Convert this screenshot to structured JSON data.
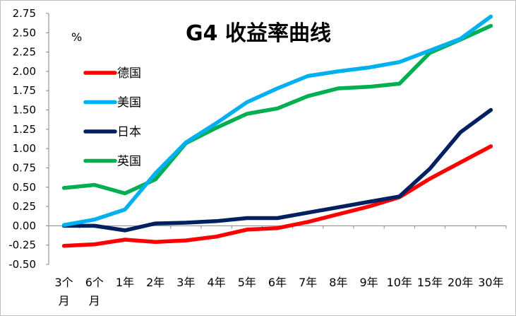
{
  "chart_data": {
    "type": "line",
    "title": "G4 收益率曲线",
    "unit": "%",
    "ylim": [
      -0.5,
      2.75
    ],
    "yticks": [
      "2.75",
      "2.50",
      "2.25",
      "2.00",
      "1.75",
      "1.50",
      "1.25",
      "1.00",
      "0.75",
      "0.50",
      "0.25",
      "0.00",
      "-0.25",
      "-0.50"
    ],
    "categories": [
      "3个月",
      "6个月",
      "1年",
      "2年",
      "3年",
      "4年",
      "5年",
      "6年",
      "7年",
      "8年",
      "9年",
      "10年",
      "15年",
      "20年",
      "30年"
    ],
    "legend_position": "left",
    "grid": false,
    "series": [
      {
        "name": "德国",
        "color": "#ff0000",
        "values": [
          -0.26,
          -0.24,
          -0.18,
          -0.21,
          -0.19,
          -0.14,
          -0.05,
          -0.03,
          0.05,
          0.15,
          0.25,
          0.37,
          0.61,
          0.82,
          1.03
        ]
      },
      {
        "name": "美国",
        "color": "#00b0f0",
        "values": [
          0.01,
          0.08,
          0.21,
          0.68,
          1.08,
          1.33,
          1.6,
          1.78,
          1.94,
          2.0,
          2.05,
          2.12,
          2.27,
          2.42,
          2.71
        ]
      },
      {
        "name": "日本",
        "color": "#002060",
        "values": [
          0.0,
          0.0,
          -0.06,
          0.03,
          0.04,
          0.06,
          0.1,
          0.1,
          0.17,
          0.24,
          0.31,
          0.38,
          0.74,
          1.21,
          1.5
        ]
      },
      {
        "name": "英国",
        "color": "#00b050",
        "values": [
          0.49,
          0.53,
          0.42,
          0.6,
          1.07,
          1.27,
          1.45,
          1.52,
          1.68,
          1.78,
          1.8,
          1.84,
          2.24,
          2.41,
          2.59
        ]
      }
    ]
  }
}
